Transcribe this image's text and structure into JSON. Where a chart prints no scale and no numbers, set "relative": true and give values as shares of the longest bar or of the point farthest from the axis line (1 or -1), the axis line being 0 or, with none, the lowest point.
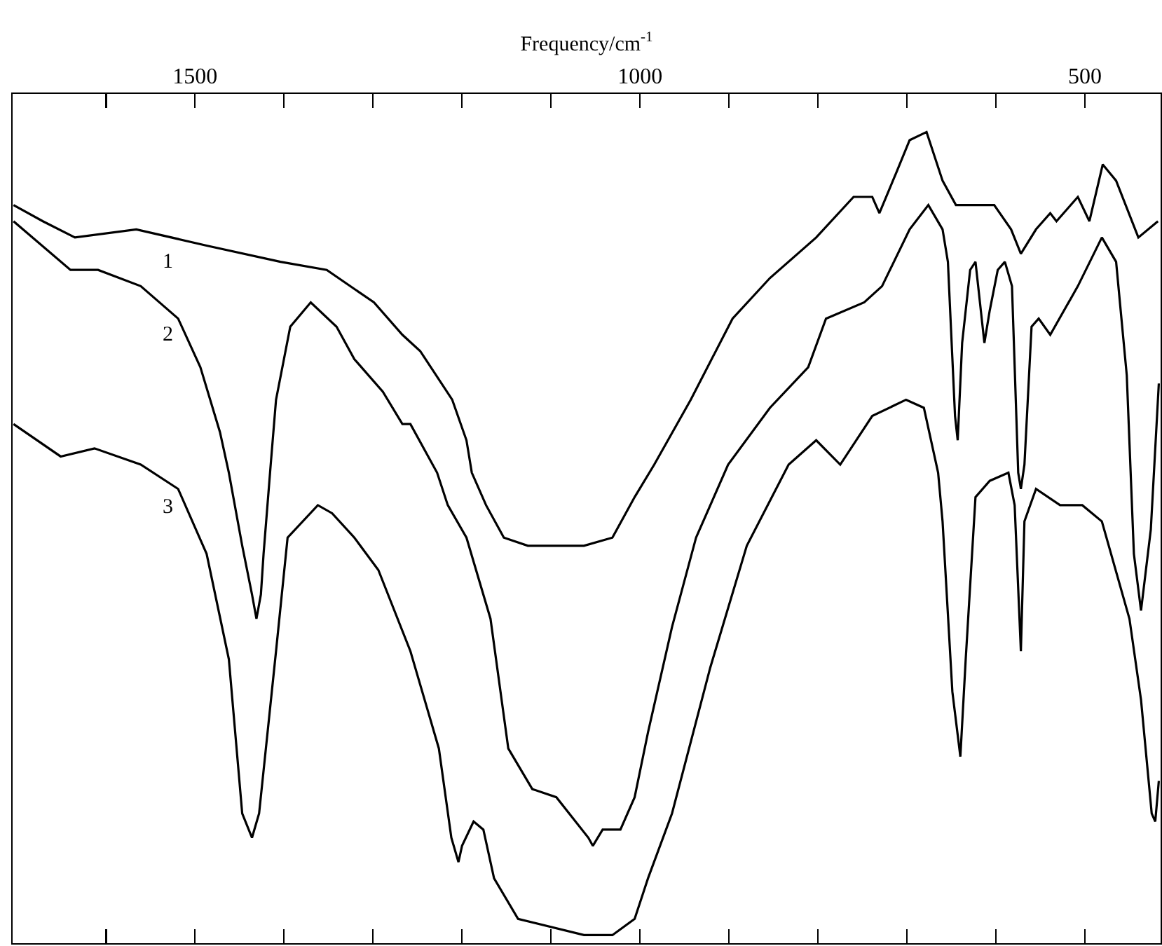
{
  "chart_data": {
    "type": "line",
    "relative": true,
    "xlabel": "Frequency/cm$^{-1}$",
    "xlim": [
      1705,
      415
    ],
    "xticks": [
      {
        "value": 1600,
        "label": null
      },
      1500,
      {
        "value": 1400,
        "label": null
      },
      {
        "value": 1300,
        "label": null
      },
      {
        "value": 1200,
        "label": null
      },
      {
        "value": 1100,
        "label": null
      },
      1000,
      {
        "value": 900,
        "label": null
      },
      {
        "value": 800,
        "label": null
      },
      {
        "value": 700,
        "label": null
      },
      {
        "value": 600,
        "label": null
      },
      500
    ],
    "grid": false,
    "legend": false,
    "marker": "none",
    "line_style": "solid",
    "series": [
      {
        "name": "1",
        "color": "#000000",
        "x": [
          1704,
          1671,
          1635,
          1566,
          1487,
          1404,
          1352,
          1299,
          1267,
          1247,
          1211,
          1195,
          1189,
          1173,
          1153,
          1126,
          1094,
          1063,
          1031,
          1006,
          984,
          943,
          896,
          854,
          802,
          760,
          739,
          731,
          712,
          697,
          678,
          660,
          645,
          629,
          602,
          583,
          572,
          555,
          539,
          532,
          508,
          495,
          480,
          465,
          440,
          418
        ],
        "values": [
          0.91,
          0.89,
          0.87,
          0.88,
          0.86,
          0.84,
          0.83,
          0.79,
          0.75,
          0.73,
          0.67,
          0.62,
          0.58,
          0.54,
          0.5,
          0.49,
          0.49,
          0.49,
          0.5,
          0.55,
          0.59,
          0.67,
          0.77,
          0.82,
          0.87,
          0.92,
          0.92,
          0.9,
          0.95,
          0.99,
          1.0,
          0.94,
          0.91,
          0.91,
          0.91,
          0.88,
          0.85,
          0.88,
          0.9,
          0.89,
          0.92,
          0.89,
          0.96,
          0.94,
          0.87,
          0.89
        ]
      },
      {
        "name": "2",
        "color": "#000000",
        "x": [
          1704,
          1640,
          1609,
          1561,
          1519,
          1494,
          1472,
          1462,
          1447,
          1436,
          1431,
          1426,
          1423,
          1415,
          1409,
          1393,
          1370,
          1341,
          1321,
          1289,
          1267,
          1258,
          1228,
          1216,
          1195,
          1168,
          1148,
          1121,
          1094,
          1058,
          1053,
          1042,
          1022,
          1006,
          991,
          964,
          937,
          901,
          854,
          811,
          791,
          748,
          728,
          697,
          676,
          660,
          654,
          646,
          643,
          638,
          629,
          623,
          613,
          607,
          598,
          590,
          582,
          575,
          572,
          568,
          560,
          552,
          539,
          508,
          481,
          465,
          453,
          445,
          437,
          426,
          422,
          417
        ],
        "values": [
          0.89,
          0.83,
          0.83,
          0.81,
          0.77,
          0.71,
          0.63,
          0.58,
          0.49,
          0.43,
          0.4,
          0.43,
          0.48,
          0.59,
          0.67,
          0.76,
          0.79,
          0.76,
          0.72,
          0.68,
          0.64,
          0.64,
          0.58,
          0.54,
          0.5,
          0.4,
          0.24,
          0.19,
          0.18,
          0.13,
          0.12,
          0.14,
          0.14,
          0.18,
          0.26,
          0.39,
          0.5,
          0.59,
          0.66,
          0.71,
          0.77,
          0.79,
          0.81,
          0.88,
          0.91,
          0.88,
          0.84,
          0.65,
          0.62,
          0.74,
          0.83,
          0.84,
          0.74,
          0.78,
          0.83,
          0.84,
          0.81,
          0.58,
          0.56,
          0.59,
          0.76,
          0.77,
          0.75,
          0.81,
          0.87,
          0.84,
          0.7,
          0.48,
          0.41,
          0.51,
          0.59,
          0.69
        ]
      },
      {
        "name": "3",
        "color": "#000000",
        "x": [
          1704,
          1651,
          1613,
          1561,
          1519,
          1487,
          1462,
          1447,
          1436,
          1428,
          1409,
          1396,
          1362,
          1346,
          1321,
          1294,
          1258,
          1226,
          1212,
          1204,
          1200,
          1187,
          1176,
          1164,
          1137,
          1063,
          1031,
          1006,
          991,
          964,
          921,
          880,
          833,
          802,
          775,
          739,
          701,
          681,
          665,
          660,
          649,
          640,
          634,
          623,
          607,
          586,
          579,
          572,
          568,
          555,
          528,
          503,
          481,
          450,
          437,
          425,
          421,
          417
        ],
        "values": [
          0.64,
          0.6,
          0.61,
          0.59,
          0.56,
          0.48,
          0.35,
          0.16,
          0.13,
          0.16,
          0.36,
          0.5,
          0.54,
          0.53,
          0.5,
          0.46,
          0.36,
          0.24,
          0.13,
          0.1,
          0.12,
          0.15,
          0.14,
          0.08,
          0.03,
          0.01,
          0.01,
          0.03,
          0.08,
          0.16,
          0.34,
          0.49,
          0.59,
          0.62,
          0.59,
          0.65,
          0.67,
          0.66,
          0.58,
          0.52,
          0.31,
          0.23,
          0.35,
          0.55,
          0.57,
          0.58,
          0.54,
          0.36,
          0.52,
          0.56,
          0.54,
          0.54,
          0.52,
          0.4,
          0.3,
          0.16,
          0.15,
          0.2
        ]
      }
    ]
  }
}
